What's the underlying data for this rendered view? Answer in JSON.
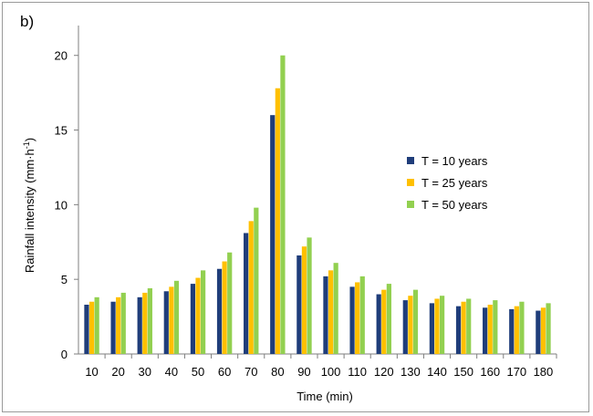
{
  "panel_label": "b)",
  "chart_data": {
    "type": "bar",
    "title": "",
    "xlabel": "Time (min)",
    "ylabel_main": "Rainfall intensity (mm·h",
    "ylabel_sup": "-1",
    "ylabel_close": ")",
    "ylim": [
      0,
      22
    ],
    "yticks": [
      0,
      5,
      10,
      15,
      20
    ],
    "grid": false,
    "legend_position": "right",
    "categories": [
      "10",
      "20",
      "30",
      "40",
      "50",
      "60",
      "70",
      "80",
      "90",
      "100",
      "110",
      "120",
      "130",
      "140",
      "150",
      "160",
      "170",
      "180"
    ],
    "series": [
      {
        "name": "T = 10 years",
        "color": "#1f3d7a",
        "values": [
          3.3,
          3.5,
          3.8,
          4.2,
          4.7,
          5.7,
          8.1,
          16.0,
          6.6,
          5.2,
          4.5,
          4.0,
          3.6,
          3.4,
          3.2,
          3.1,
          3.0,
          2.9
        ]
      },
      {
        "name": "T = 25 years",
        "color": "#ffc000",
        "values": [
          3.5,
          3.8,
          4.1,
          4.5,
          5.1,
          6.2,
          8.9,
          17.8,
          7.2,
          5.6,
          4.8,
          4.3,
          3.9,
          3.7,
          3.5,
          3.3,
          3.2,
          3.1
        ]
      },
      {
        "name": "T = 50 years",
        "color": "#92d050",
        "values": [
          3.8,
          4.1,
          4.4,
          4.9,
          5.6,
          6.8,
          9.8,
          20.0,
          7.8,
          6.1,
          5.2,
          4.7,
          4.3,
          3.9,
          3.7,
          3.6,
          3.5,
          3.4
        ]
      }
    ]
  }
}
